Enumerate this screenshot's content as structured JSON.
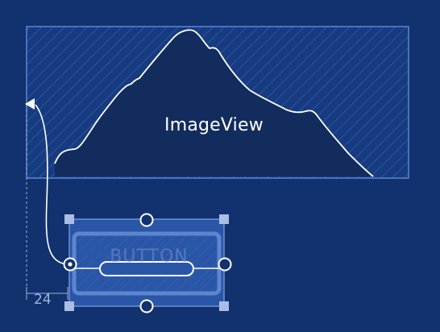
{
  "imageview": {
    "label": "ImageView"
  },
  "button": {
    "label": "BUTTON"
  },
  "constraint": {
    "margin_label": "24"
  },
  "colors": {
    "background": "#12316f",
    "imageview_fill": "#163a7e",
    "imageview_border": "#5a88d0",
    "mountain_fill": "#132c5e",
    "outline": "#ffffff",
    "handle": "#aabde6",
    "selection": "#5a7fc8"
  }
}
